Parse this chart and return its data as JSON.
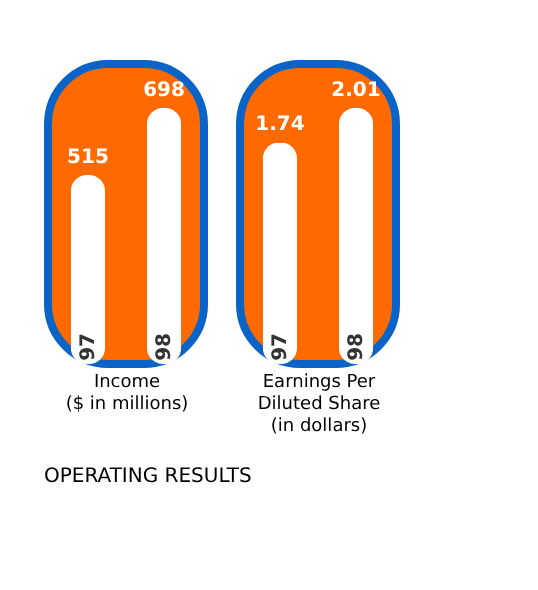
{
  "chart_data": [
    {
      "type": "bar",
      "xlabel": "Income\n($ in millions)",
      "categories": [
        "97",
        "98"
      ],
      "values": [
        515,
        698
      ],
      "color": "#ffffff",
      "data_labels": true,
      "tick_labels": "x",
      "title": "OPERATING RESULTS"
    },
    {
      "type": "bar",
      "xlabel": "Earnings Per\nDiluted Share\n(in dollars)",
      "categories": [
        "97",
        "98"
      ],
      "values": [
        1.74,
        2.01
      ],
      "color": "#ffffff",
      "data_labels": true,
      "tick_labels": "x"
    }
  ]
}
